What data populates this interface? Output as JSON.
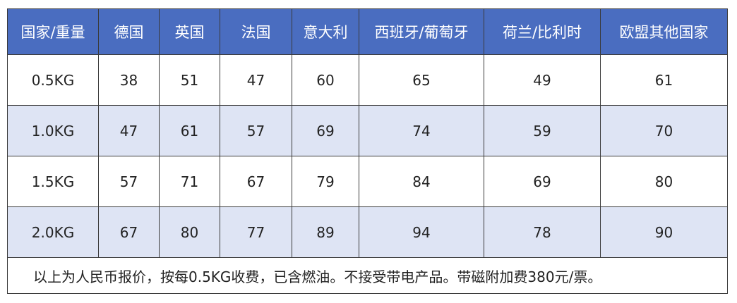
{
  "table": {
    "header": [
      "国家/重量",
      "德国",
      "英国",
      "法国",
      "意大利",
      "西班牙/葡萄牙",
      "荷兰/比利时",
      "欧盟其他国家"
    ],
    "rows": [
      [
        "0.5KG",
        38,
        51,
        47,
        60,
        65,
        49,
        61
      ],
      [
        "1.0KG",
        47,
        61,
        57,
        69,
        74,
        59,
        70
      ],
      [
        "1.5KG",
        57,
        71,
        67,
        79,
        84,
        69,
        80
      ],
      [
        "2.0KG",
        67,
        80,
        77,
        89,
        94,
        78,
        90
      ]
    ],
    "note": "以上为人民币报价，按每0.5KG收费，已含燃油。不接受带电产品。带磁附加费380元/票。"
  }
}
